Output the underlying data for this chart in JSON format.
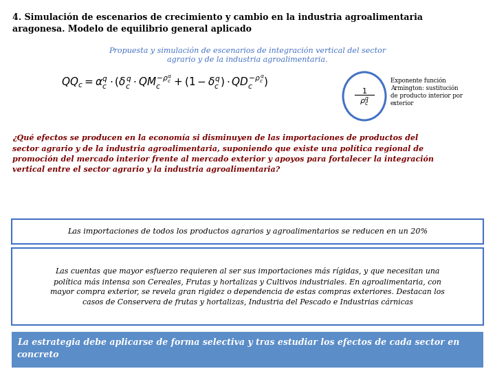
{
  "title_line1": "4. Simulación de escenarios de crecimiento y cambio en la industria agroalimentaria",
  "title_line2": "aragonesa. Modelo de equilibrio general aplicado",
  "subtitle": "Propuesta y simulación de escenarios de integración vertical del sector\nagrario y de la industria agroalimentaria.",
  "annotation_text": "Exponente función\nArmington: sustitución\nde producto interior por\nexterior",
  "question": "¿Qué efectos se producen en la economía si disminuyen de las importaciones de productos del\nsector agrario y de la industria agroalimentaria, suponiendo que existe una política regional de\npromoción del mercado interior frente al mercado exterior y apoyos para fortalecer la integración\nvertical entre el sector agrario y la industria agroalimentaria?",
  "box1_text": "Las importaciones de todos los productos agrarios y agroalimentarios se reducen en un 20%",
  "box2_text": "Las cuentas que mayor esfuerzo requieren al ser sus importaciones más rígidas, y que necesitan una\npolítica más intensa son Cereales, Frutas y hortalizas y Cultivos industriales. En agroalimentaria, con\nmayor compra exterior, se revela gran rigidez o dependencia de estas compras exteriores. Destacan los\ncasos de Conservera de frutas y hortalizas, Industria del Pescado e Industrias cárnicas",
  "box3_text": "La estrategia debe aplicarse de forma selectiva y tras estudiar los efectos de cada sector en\nconcreto",
  "bg_color": "#ffffff",
  "title_color": "#000000",
  "subtitle_color": "#4472c4",
  "question_color": "#7b0000",
  "box1_border_color": "#4472c4",
  "box1_bg_color": "#ffffff",
  "box1_text_color": "#000000",
  "box2_border_color": "#4472c4",
  "box2_bg_color": "#ffffff",
  "box2_text_color": "#000000",
  "box3_bg_color": "#5b8dc8",
  "box3_text_color": "#ffffff",
  "circle_color": "#4472c4",
  "annotation_text_color": "#000000"
}
